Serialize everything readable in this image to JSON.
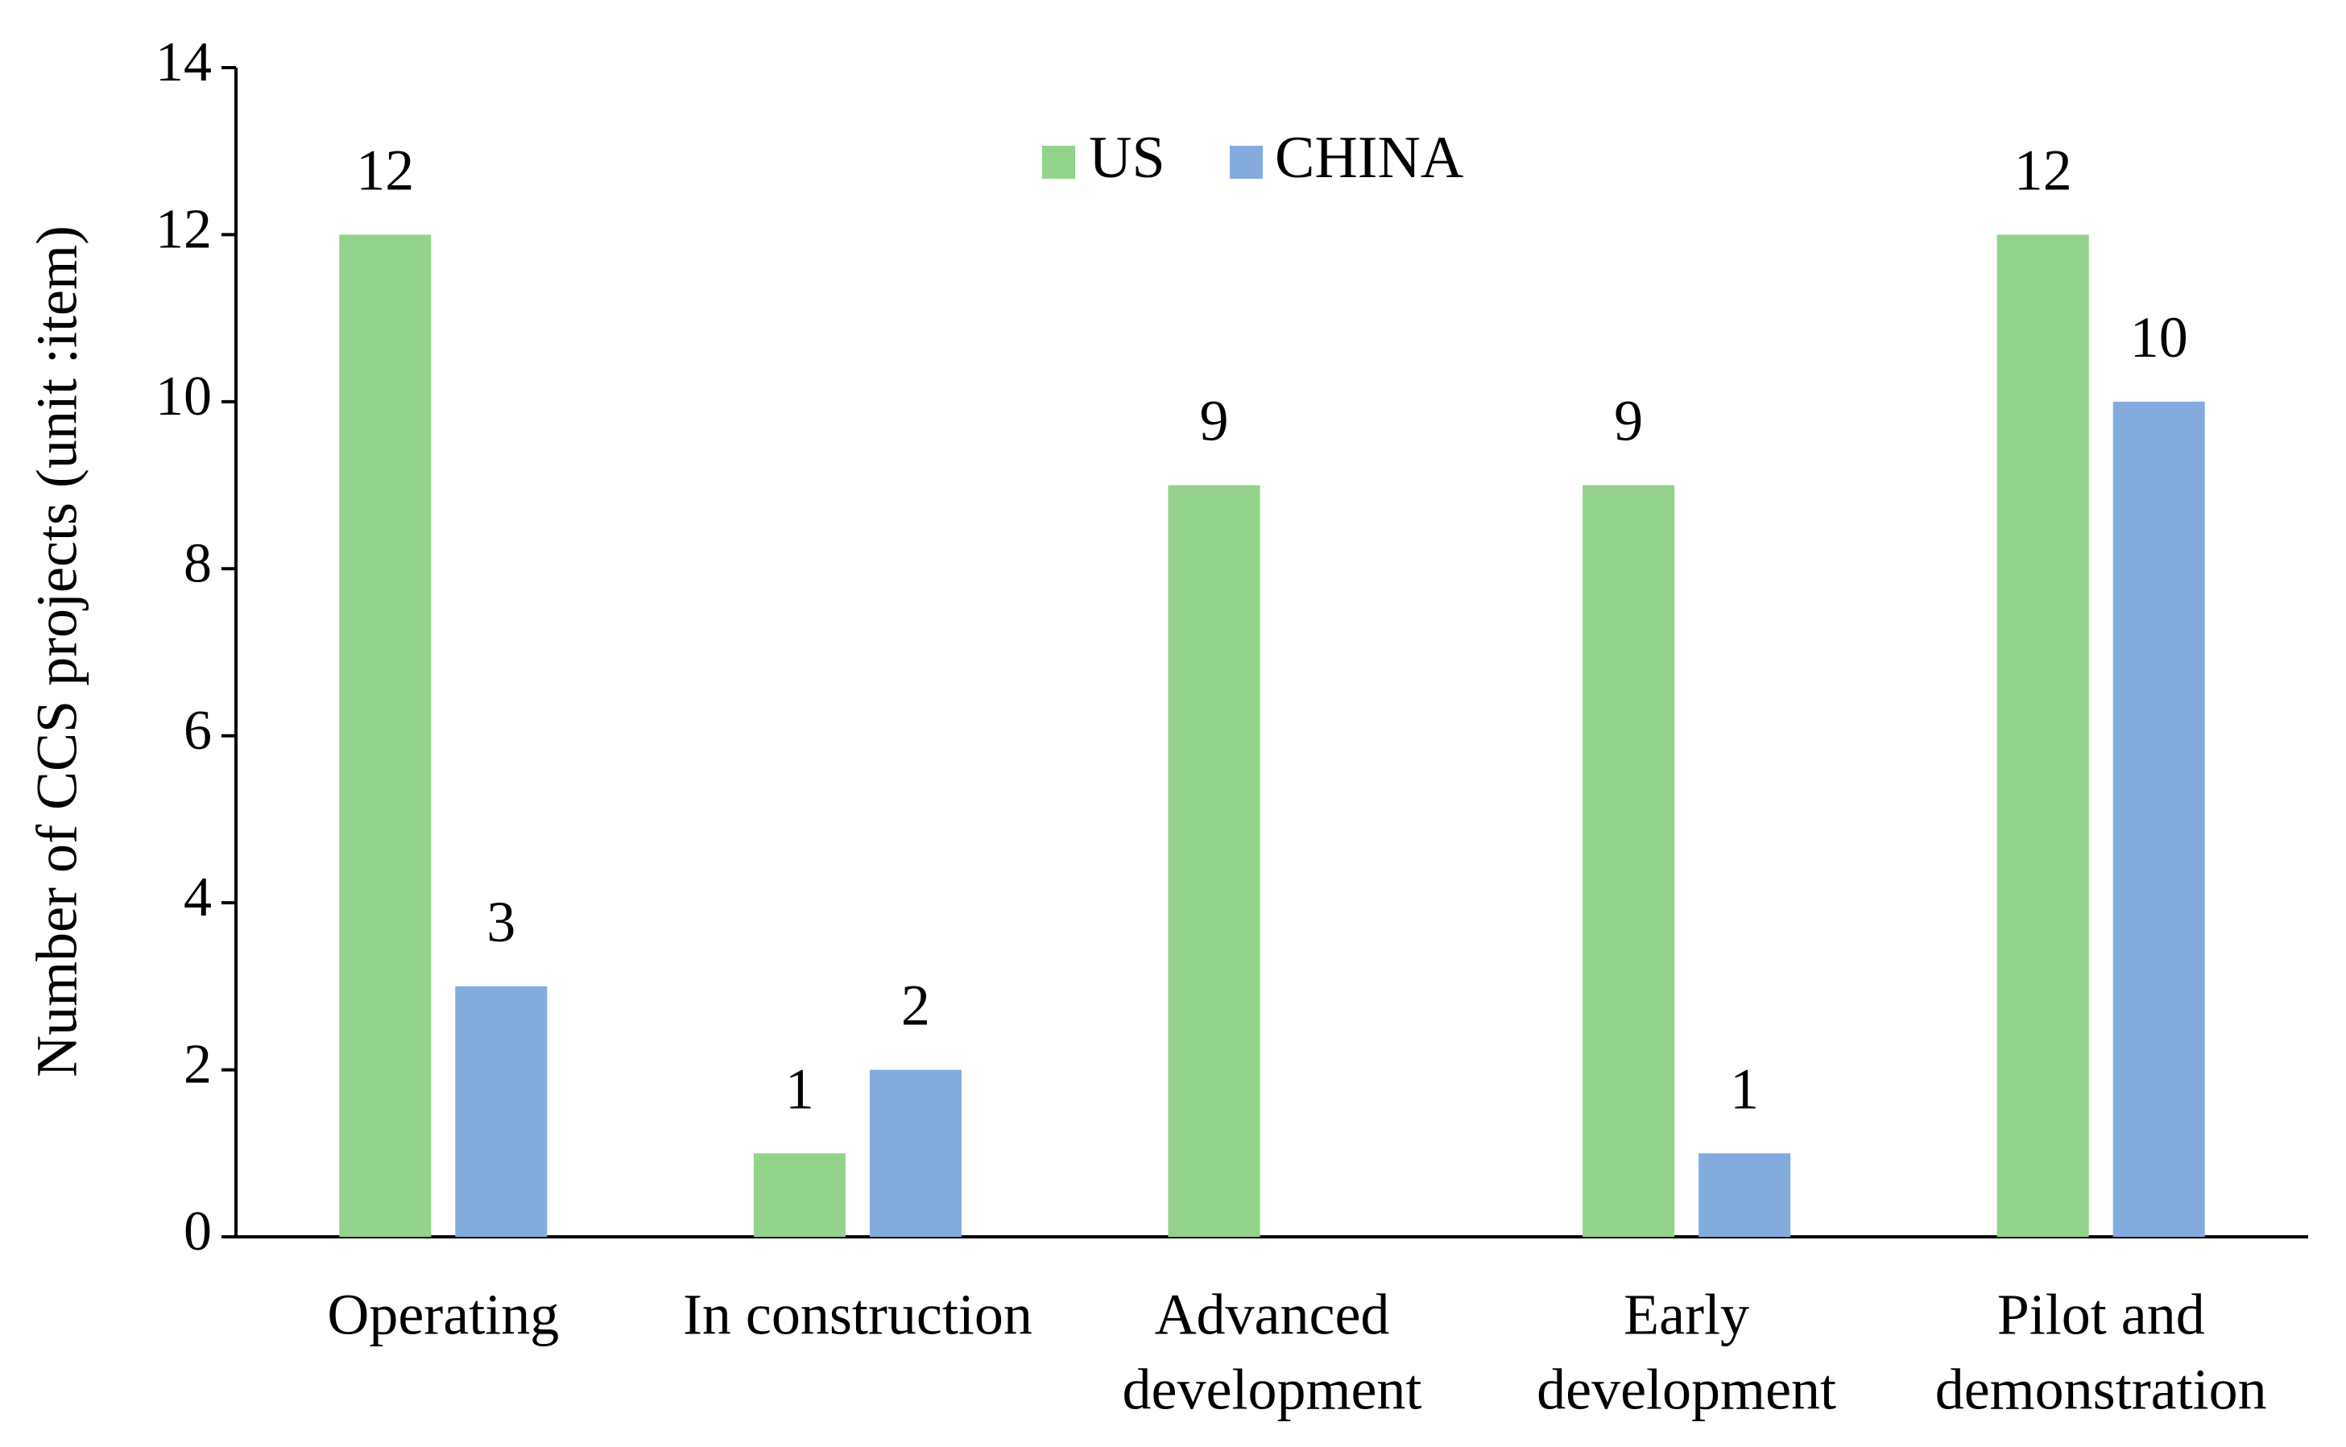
{
  "chart_data": {
    "type": "bar",
    "categories": [
      [
        "Operating"
      ],
      [
        "In construction"
      ],
      [
        "Advanced",
        "development"
      ],
      [
        "Early",
        "development"
      ],
      [
        "Pilot and",
        "demonstration"
      ]
    ],
    "series": [
      {
        "name": "US",
        "color": "#93D28B",
        "values": [
          12,
          1,
          9,
          9,
          12
        ]
      },
      {
        "name": "CHINA",
        "color": "#83ABDE",
        "values": [
          3,
          2,
          null,
          1,
          10
        ]
      }
    ],
    "title": "",
    "xlabel": "",
    "ylabel": "Number of CCS projects (unit :item)",
    "ylim": [
      0,
      14
    ],
    "yticks": [
      0,
      2,
      4,
      6,
      8,
      10,
      12,
      14
    ],
    "grid": false,
    "legend": "top-center",
    "data_labels": true
  }
}
